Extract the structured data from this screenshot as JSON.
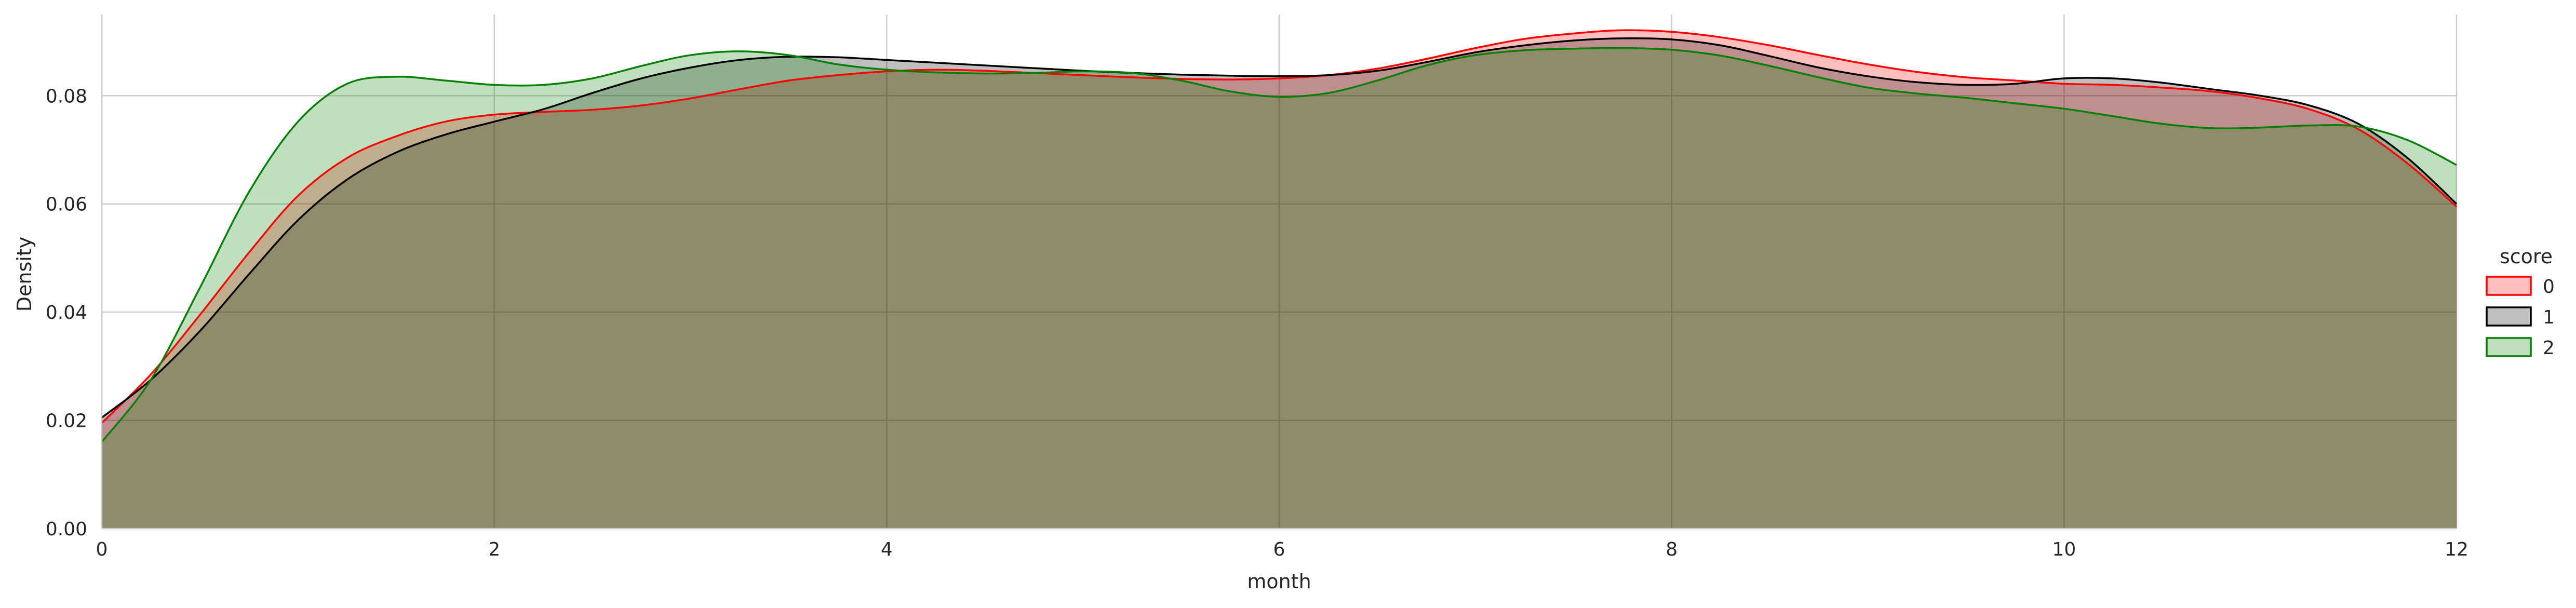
{
  "chart_data": {
    "type": "area",
    "xlabel": "month",
    "ylabel": "Density",
    "xlim": [
      0,
      12
    ],
    "ylim": [
      0,
      0.095
    ],
    "x_ticks": [
      0,
      2,
      4,
      6,
      8,
      10,
      12
    ],
    "x_tick_labels": [
      "0",
      "2",
      "4",
      "6",
      "8",
      "10",
      "12"
    ],
    "y_ticks": [
      0.0,
      0.02,
      0.04,
      0.06,
      0.08
    ],
    "y_tick_labels": [
      "0.00",
      "0.02",
      "0.04",
      "0.06",
      "0.08"
    ],
    "grid": true,
    "legend": {
      "title": "score",
      "placement": "right"
    },
    "x": [
      0,
      0.25,
      0.5,
      0.75,
      1,
      1.25,
      1.5,
      1.75,
      2,
      2.25,
      2.5,
      2.75,
      3,
      3.25,
      3.5,
      3.75,
      4,
      4.25,
      4.5,
      4.75,
      5,
      5.25,
      5.5,
      5.75,
      6,
      6.25,
      6.5,
      6.75,
      7,
      7.25,
      7.5,
      7.75,
      8,
      8.25,
      8.5,
      8.75,
      9,
      9.25,
      9.5,
      9.75,
      10,
      10.25,
      10.5,
      10.75,
      11,
      11.25,
      11.5,
      11.75,
      12
    ],
    "series": [
      {
        "name": "0",
        "color": "#ff0000",
        "values": [
          0.0195,
          0.0285,
          0.0395,
          0.051,
          0.0615,
          0.0685,
          0.0725,
          0.0752,
          0.0765,
          0.077,
          0.0774,
          0.0782,
          0.0795,
          0.0812,
          0.0828,
          0.0838,
          0.0845,
          0.0848,
          0.0846,
          0.0842,
          0.0838,
          0.0834,
          0.0831,
          0.083,
          0.0832,
          0.0838,
          0.085,
          0.0868,
          0.0888,
          0.0905,
          0.0915,
          0.0921,
          0.0918,
          0.0908,
          0.0893,
          0.0875,
          0.0858,
          0.0844,
          0.0834,
          0.0828,
          0.0822,
          0.082,
          0.0815,
          0.0808,
          0.0795,
          0.0775,
          0.0738,
          0.0675,
          0.0595
        ]
      },
      {
        "name": "1",
        "color": "#000000",
        "values": [
          0.0205,
          0.0275,
          0.0365,
          0.047,
          0.057,
          0.0645,
          0.0695,
          0.0728,
          0.0752,
          0.0775,
          0.0805,
          0.0832,
          0.0852,
          0.0866,
          0.0872,
          0.0871,
          0.0866,
          0.0861,
          0.0856,
          0.0851,
          0.0846,
          0.0842,
          0.0839,
          0.0837,
          0.0836,
          0.0838,
          0.0846,
          0.0862,
          0.088,
          0.0893,
          0.0902,
          0.0906,
          0.0904,
          0.0893,
          0.0873,
          0.0852,
          0.0836,
          0.0825,
          0.082,
          0.0822,
          0.0832,
          0.0832,
          0.0824,
          0.0812,
          0.08,
          0.0782,
          0.0748,
          0.0685,
          0.06
        ]
      },
      {
        "name": "2",
        "color": "#008000",
        "values": [
          0.016,
          0.0275,
          0.0445,
          0.0622,
          0.0752,
          0.0822,
          0.0835,
          0.0828,
          0.082,
          0.082,
          0.0832,
          0.0855,
          0.0875,
          0.0882,
          0.0875,
          0.0858,
          0.0848,
          0.0843,
          0.0841,
          0.0842,
          0.0845,
          0.0842,
          0.0828,
          0.0808,
          0.0798,
          0.0805,
          0.0828,
          0.0856,
          0.0875,
          0.0884,
          0.0887,
          0.0888,
          0.0885,
          0.0874,
          0.0855,
          0.0834,
          0.0815,
          0.0804,
          0.0796,
          0.0786,
          0.0776,
          0.0762,
          0.0748,
          0.074,
          0.0741,
          0.0745,
          0.0743,
          0.0718,
          0.0672
        ]
      }
    ]
  }
}
